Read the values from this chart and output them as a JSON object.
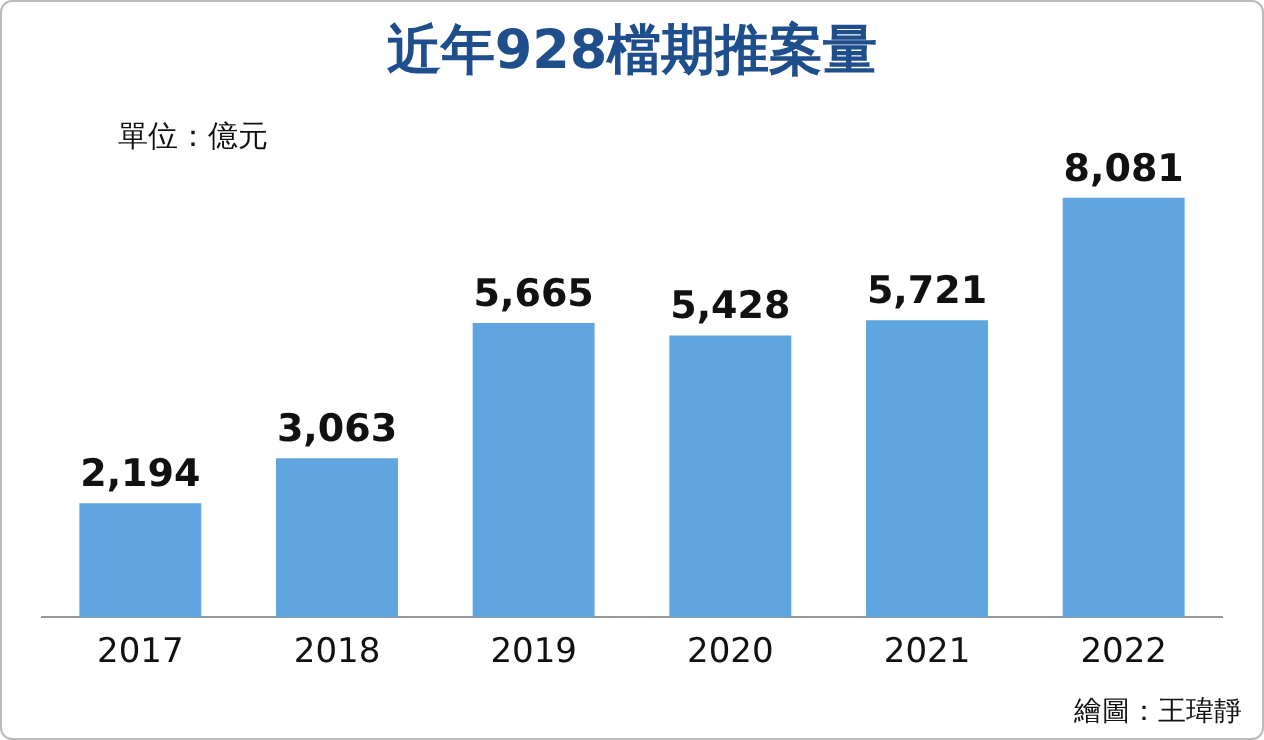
{
  "chart_data": {
    "type": "bar",
    "title": "近年928檔期推案量",
    "categories": [
      "2017",
      "2018",
      "2019",
      "2020",
      "2021",
      "2022"
    ],
    "values": [
      2194,
      3063,
      5665,
      5428,
      5721,
      8081
    ],
    "color": "#5fa5e0",
    "value_labels": [
      "2,194",
      "3,063",
      "5,665",
      "5,428",
      "5,721",
      "8,081"
    ],
    "grid": false,
    "legend": false,
    "annotations": [
      "單位：億元",
      "繪圖：王瑋靜"
    ]
  }
}
